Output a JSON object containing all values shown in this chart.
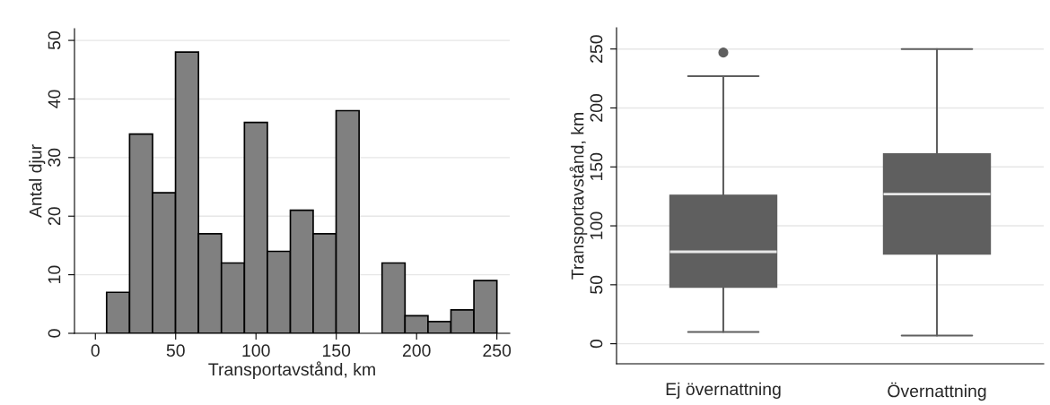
{
  "chart_data": [
    {
      "type": "histogram",
      "xlabel": "Transportavstånd, km",
      "ylabel": "Antal djur",
      "bins": [
        7,
        21.3,
        35.6,
        49.9,
        64.2,
        78.5,
        92.8,
        107.1,
        121.4,
        135.6,
        149.9,
        164.2,
        178.5,
        192.8,
        207.1,
        221.4,
        235.7,
        250
      ],
      "values": [
        7,
        34,
        24,
        48,
        17,
        12,
        36,
        14,
        21,
        17,
        38,
        0,
        12,
        3,
        2,
        4,
        9
      ],
      "color": "#808080",
      "xlim": [
        -13,
        258
      ],
      "xticks": [
        0,
        50,
        100,
        150,
        200,
        250
      ],
      "ylim": [
        0,
        52
      ],
      "yticks": [
        0,
        10,
        20,
        30,
        40,
        50
      ],
      "grid": "y",
      "legend": false
    },
    {
      "type": "box",
      "ylabel": "Transportavstånd, km",
      "categories": [
        "Ej övernattning",
        "Övernattning"
      ],
      "boxes": [
        {
          "low": 10,
          "q1": 48,
          "median": 78,
          "q3": 126,
          "high": 227,
          "outliers": [
            247
          ]
        },
        {
          "low": 7,
          "q1": 76,
          "median": 127,
          "q3": 161,
          "high": 250
        }
      ],
      "color": "#5f5f5f",
      "ylim": [
        -17,
        268
      ],
      "yticks": [
        0,
        50,
        100,
        150,
        200,
        250
      ],
      "grid": "y",
      "legend": false
    }
  ]
}
